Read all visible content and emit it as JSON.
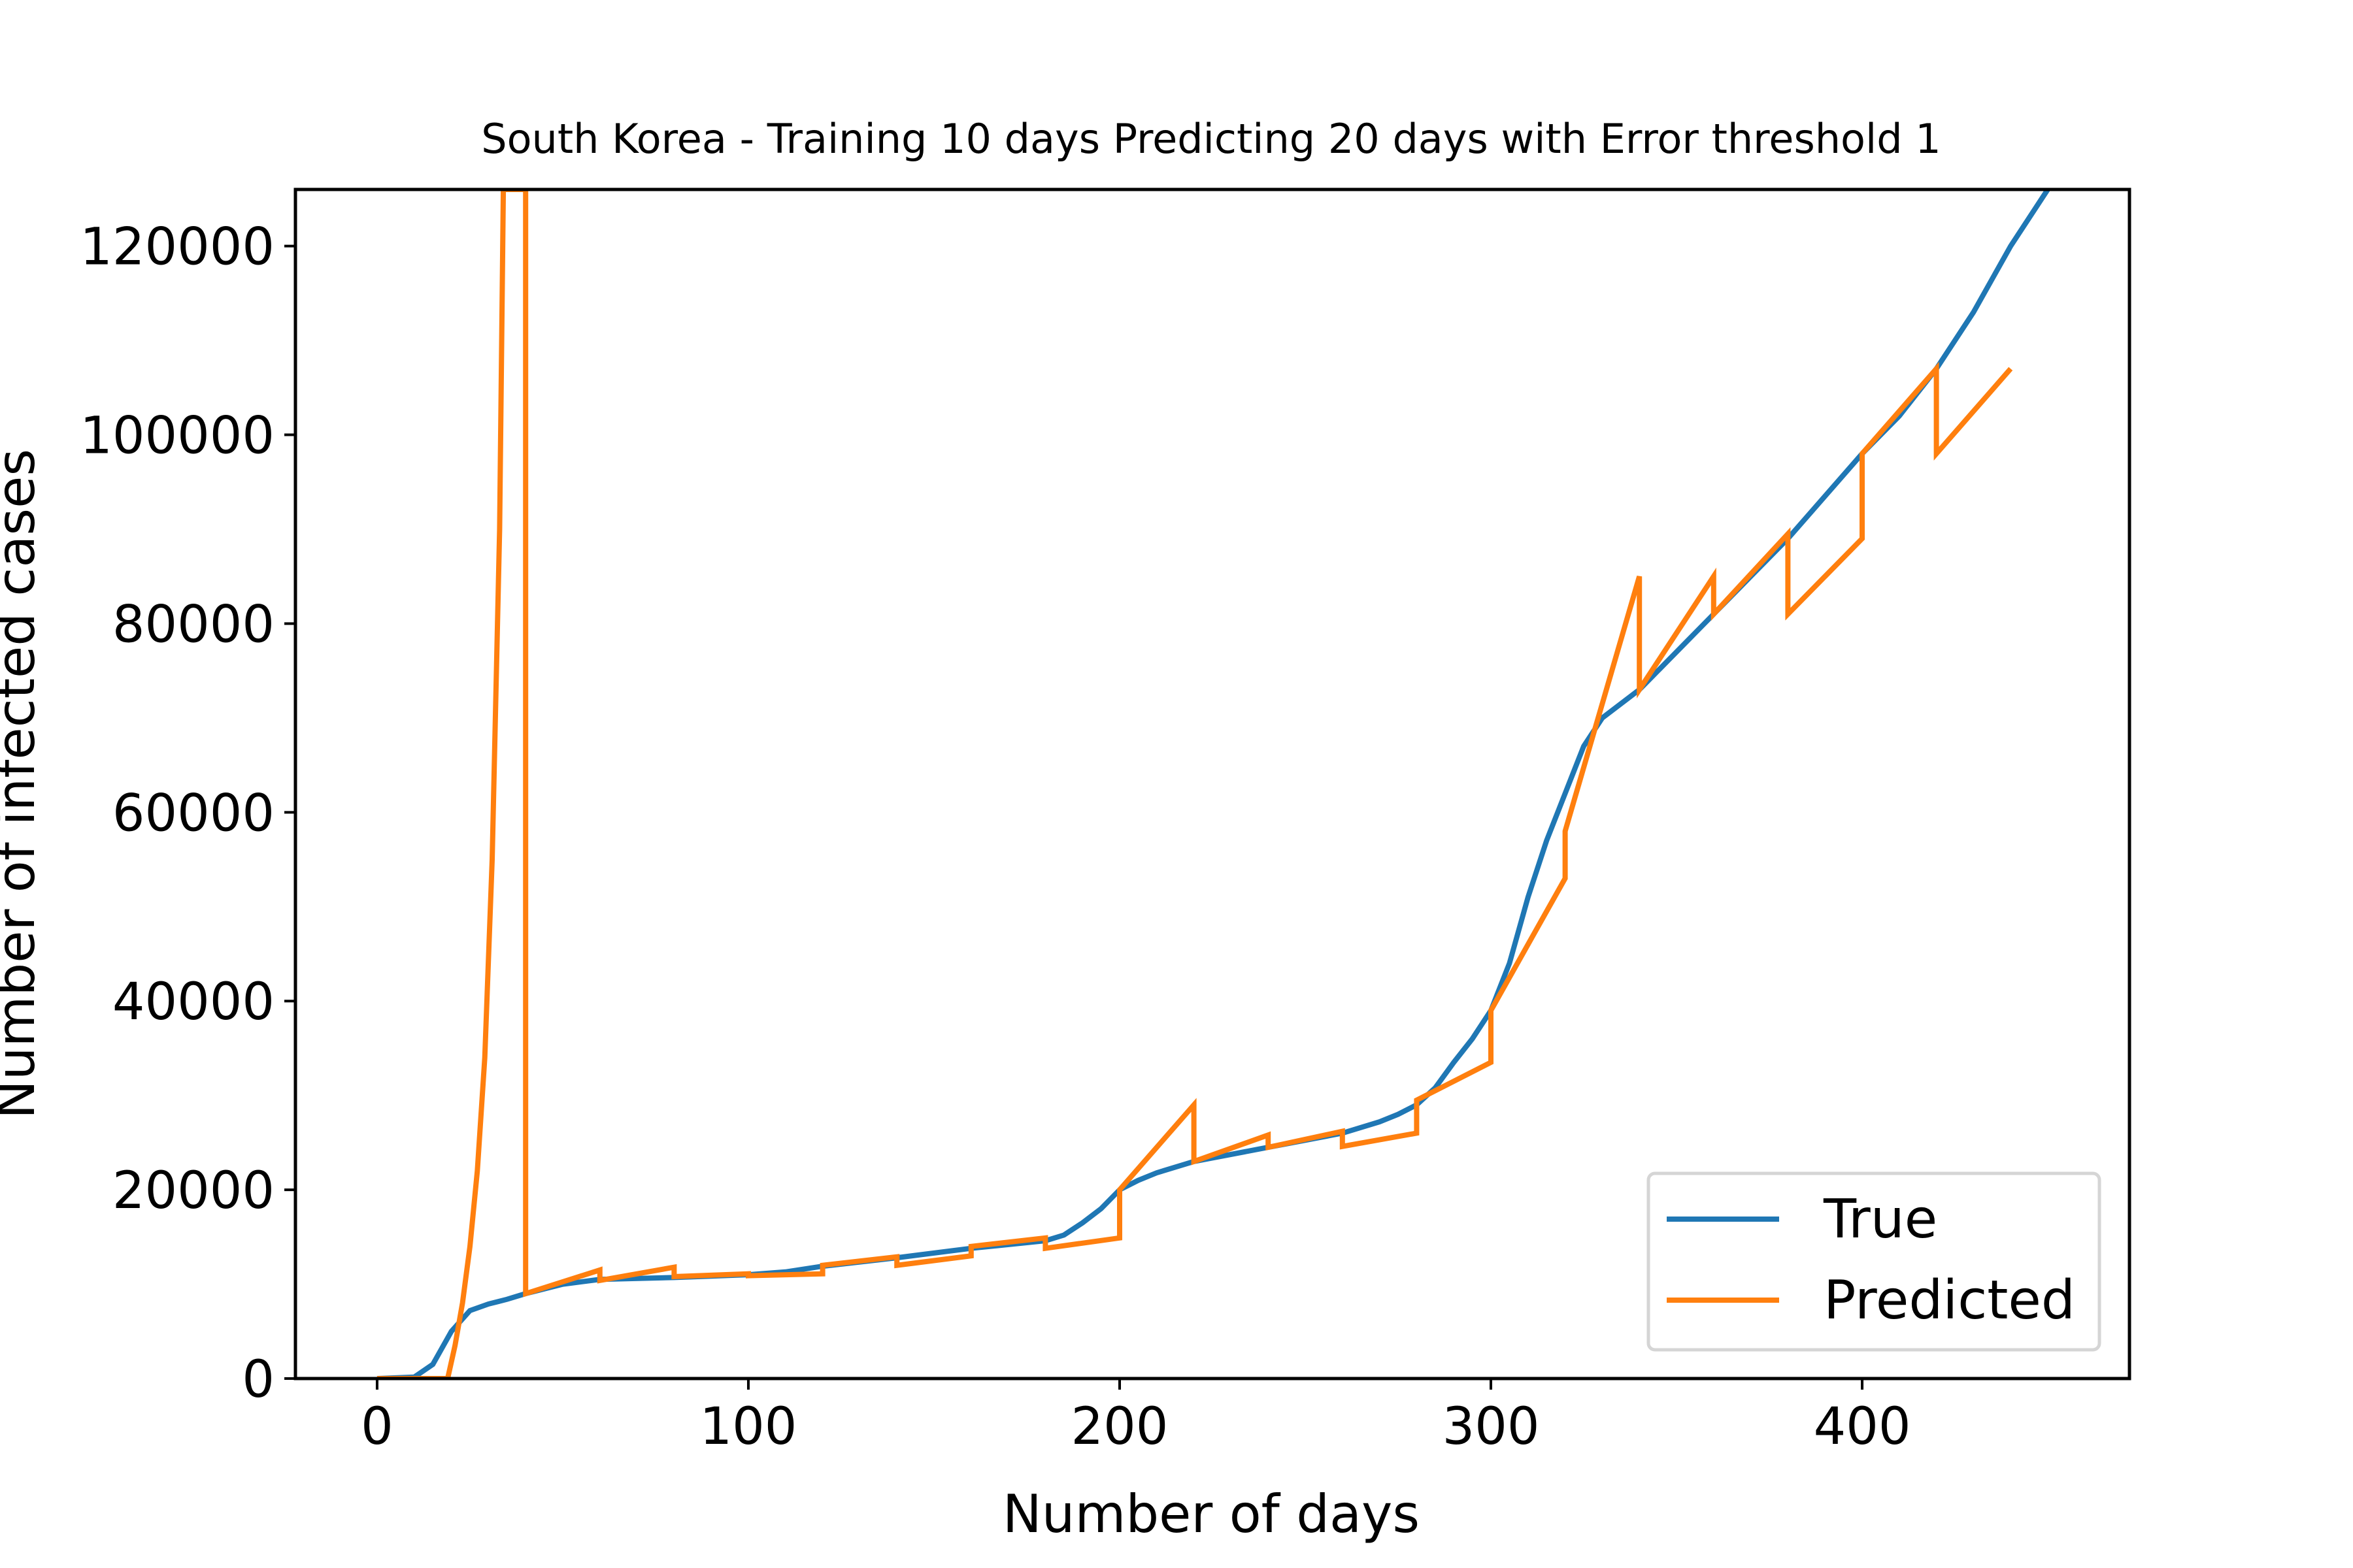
{
  "chart_data": {
    "type": "line",
    "title": "South Korea - Training 10 days Predicting 20 days with Error threshold 1",
    "xlabel": "Number of days",
    "ylabel": "Number of infected cases",
    "xlim": [
      -22,
      472
    ],
    "ylim": [
      0,
      126000
    ],
    "x_ticks": [
      0,
      100,
      200,
      300,
      400
    ],
    "y_ticks": [
      0,
      20000,
      40000,
      60000,
      80000,
      100000,
      120000
    ],
    "grid": false,
    "legend_position": "lower-right",
    "series": [
      {
        "name": "True",
        "color": "#1f77b4",
        "points": [
          [
            0,
            0
          ],
          [
            10,
            150
          ],
          [
            15,
            1500
          ],
          [
            20,
            5000
          ],
          [
            25,
            7200
          ],
          [
            30,
            7900
          ],
          [
            35,
            8400
          ],
          [
            40,
            9000
          ],
          [
            50,
            10000
          ],
          [
            60,
            10500
          ],
          [
            80,
            10700
          ],
          [
            100,
            11000
          ],
          [
            110,
            11300
          ],
          [
            120,
            11900
          ],
          [
            140,
            12800
          ],
          [
            160,
            13800
          ],
          [
            180,
            14600
          ],
          [
            185,
            15200
          ],
          [
            190,
            16500
          ],
          [
            195,
            18000
          ],
          [
            200,
            20000
          ],
          [
            205,
            21000
          ],
          [
            210,
            21800
          ],
          [
            220,
            23000
          ],
          [
            240,
            24500
          ],
          [
            260,
            26000
          ],
          [
            270,
            27200
          ],
          [
            275,
            28000
          ],
          [
            280,
            29000
          ],
          [
            285,
            30800
          ],
          [
            290,
            33500
          ],
          [
            295,
            36000
          ],
          [
            300,
            39000
          ],
          [
            305,
            44000
          ],
          [
            310,
            51000
          ],
          [
            315,
            57000
          ],
          [
            320,
            62000
          ],
          [
            325,
            67000
          ],
          [
            330,
            70000
          ],
          [
            340,
            73000
          ],
          [
            350,
            77000
          ],
          [
            360,
            81000
          ],
          [
            370,
            85000
          ],
          [
            380,
            89000
          ],
          [
            390,
            93500
          ],
          [
            400,
            98000
          ],
          [
            410,
            102000
          ],
          [
            420,
            107000
          ],
          [
            430,
            113000
          ],
          [
            440,
            120000
          ],
          [
            450,
            126000
          ]
        ]
      },
      {
        "name": "Predicted",
        "color": "#ff7f0e",
        "points": [
          [
            0,
            0
          ],
          [
            19,
            0
          ],
          [
            21,
            3500
          ],
          [
            23,
            8000
          ],
          [
            25,
            14000
          ],
          [
            27,
            22000
          ],
          [
            29,
            34000
          ],
          [
            31,
            55000
          ],
          [
            33,
            90000
          ],
          [
            34,
            126000
          ],
          [
            40,
            126000
          ],
          [
            40,
            9000
          ],
          [
            60,
            11500
          ],
          [
            60,
            10400
          ],
          [
            80,
            11800
          ],
          [
            80,
            10800
          ],
          [
            100,
            11100
          ],
          [
            100,
            10900
          ],
          [
            120,
            11100
          ],
          [
            120,
            12000
          ],
          [
            140,
            12900
          ],
          [
            140,
            12000
          ],
          [
            160,
            13000
          ],
          [
            160,
            14000
          ],
          [
            180,
            14900
          ],
          [
            180,
            13800
          ],
          [
            200,
            14900
          ],
          [
            200,
            20000
          ],
          [
            220,
            29000
          ],
          [
            220,
            23000
          ],
          [
            240,
            25800
          ],
          [
            240,
            24500
          ],
          [
            260,
            26200
          ],
          [
            260,
            24600
          ],
          [
            280,
            26000
          ],
          [
            280,
            29500
          ],
          [
            300,
            33500
          ],
          [
            300,
            39000
          ],
          [
            320,
            53000
          ],
          [
            320,
            58000
          ],
          [
            340,
            85000
          ],
          [
            340,
            73000
          ],
          [
            360,
            85000
          ],
          [
            360,
            81000
          ],
          [
            380,
            89500
          ],
          [
            380,
            81000
          ],
          [
            400,
            89000
          ],
          [
            400,
            98000
          ],
          [
            420,
            107000
          ],
          [
            420,
            98000
          ],
          [
            440,
            107000
          ]
        ]
      }
    ]
  }
}
